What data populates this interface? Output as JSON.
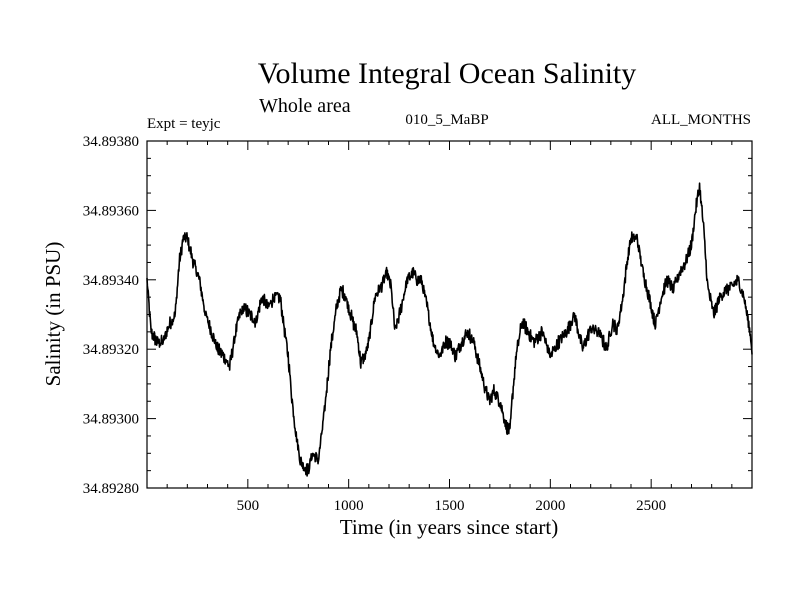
{
  "chart_data": {
    "type": "line",
    "title": "Volume Integral Ocean Salinity",
    "subtitle": "Whole area",
    "annotations": {
      "left": "Expt = teyjc",
      "center": "010_5_MaBP",
      "right": "ALL_MONTHS"
    },
    "xlabel": "Time (in years since start)",
    "ylabel": "Salinity (in PSU)",
    "xlim": [
      0,
      3000
    ],
    "ylim": [
      34.8928,
      34.8938
    ],
    "xticks": [
      500,
      1000,
      1500,
      2000,
      2500
    ],
    "xtick_labels": [
      "500",
      "1000",
      "1500",
      "2000",
      "2500"
    ],
    "yticks": [
      34.8928,
      34.893,
      34.8932,
      34.8934,
      34.8936,
      34.8938
    ],
    "ytick_labels": [
      "34.89280",
      "34.89300",
      "34.89320",
      "34.89340",
      "34.89360",
      "34.89380"
    ],
    "grid": false,
    "line_color": "#000000",
    "series": [
      {
        "name": "Salinity",
        "x": [
          0,
          20,
          50,
          80,
          110,
          140,
          160,
          180,
          200,
          230,
          260,
          290,
          320,
          350,
          380,
          410,
          440,
          460,
          480,
          510,
          540,
          570,
          600,
          630,
          660,
          690,
          700,
          720,
          740,
          760,
          780,
          800,
          820,
          850,
          880,
          910,
          940,
          960,
          980,
          1000,
          1020,
          1040,
          1060,
          1080,
          1100,
          1130,
          1160,
          1190,
          1210,
          1230,
          1260,
          1290,
          1320,
          1340,
          1360,
          1390,
          1420,
          1450,
          1480,
          1500,
          1530,
          1560,
          1590,
          1620,
          1650,
          1680,
          1700,
          1720,
          1750,
          1780,
          1800,
          1810,
          1830,
          1860,
          1890,
          1920,
          1960,
          2000,
          2040,
          2080,
          2120,
          2160,
          2200,
          2240,
          2280,
          2310,
          2330,
          2360,
          2380,
          2400,
          2430,
          2460,
          2490,
          2520,
          2550,
          2580,
          2610,
          2640,
          2670,
          2700,
          2720,
          2740,
          2760,
          2780,
          2810,
          2840,
          2870,
          2900,
          2930,
          2960,
          2990,
          3000
        ],
        "values": [
          34.8934,
          34.89325,
          34.89322,
          34.89322,
          34.89327,
          34.8933,
          34.89345,
          34.89352,
          34.89352,
          34.89345,
          34.8934,
          34.8933,
          34.89325,
          34.8932,
          34.89318,
          34.89315,
          34.89325,
          34.8933,
          34.89332,
          34.8933,
          34.89328,
          34.89335,
          34.89332,
          34.89335,
          34.89335,
          34.89322,
          34.89318,
          34.89305,
          34.89295,
          34.89288,
          34.89286,
          34.89285,
          34.8929,
          34.89288,
          34.89302,
          34.8932,
          34.89332,
          34.89337,
          34.89336,
          34.89332,
          34.89328,
          34.89325,
          34.89316,
          34.89318,
          34.89322,
          34.89335,
          34.89338,
          34.89342,
          34.89338,
          34.89325,
          34.89332,
          34.8934,
          34.89342,
          34.8934,
          34.8934,
          34.89332,
          34.89322,
          34.89318,
          34.89322,
          34.89322,
          34.89318,
          34.89322,
          34.89325,
          34.89322,
          34.89315,
          34.89308,
          34.89305,
          34.89308,
          34.89305,
          34.89298,
          34.89296,
          34.89305,
          34.89318,
          34.89328,
          34.89325,
          34.89322,
          34.89325,
          34.89318,
          34.89322,
          34.89325,
          34.8933,
          34.8932,
          34.89326,
          34.89325,
          34.8932,
          34.89328,
          34.89325,
          34.89335,
          34.89345,
          34.89352,
          34.89352,
          34.89342,
          34.89335,
          34.89327,
          34.89335,
          34.8934,
          34.89337,
          34.89342,
          34.89345,
          34.8935,
          34.8936,
          34.89367,
          34.89355,
          34.89338,
          34.8933,
          34.89335,
          34.89337,
          34.89338,
          34.8934,
          34.89335,
          34.89325,
          34.8932
        ]
      }
    ]
  }
}
